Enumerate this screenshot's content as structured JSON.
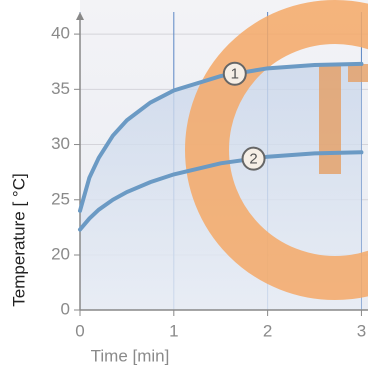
{
  "chart_data": {
    "type": "line",
    "x_label": "Time [min]",
    "y_label": "Temperature [ °C]",
    "x": [
      0,
      0.05,
      0.1,
      0.2,
      0.35,
      0.5,
      0.75,
      1,
      1.5,
      2,
      2.5,
      3
    ],
    "series": [
      {
        "name": "1",
        "color": "#6b9ac4",
        "values": [
          24,
          25.5,
          27,
          28.8,
          30.8,
          32.2,
          33.8,
          34.9,
          36.2,
          36.9,
          37.2,
          37.3
        ]
      },
      {
        "name": "2",
        "color": "#6b9ac4",
        "values": [
          22.3,
          22.8,
          23.3,
          24.1,
          25,
          25.7,
          26.6,
          27.3,
          28.3,
          28.9,
          29.2,
          29.3
        ]
      }
    ],
    "xlim": [
      0,
      3.07
    ],
    "ylim": [
      0,
      42
    ],
    "xticks": [
      0,
      1,
      2,
      3
    ],
    "yticks": [
      0,
      20,
      25,
      30,
      35,
      40
    ],
    "axis_break": [
      0,
      20
    ],
    "grid": true
  }
}
